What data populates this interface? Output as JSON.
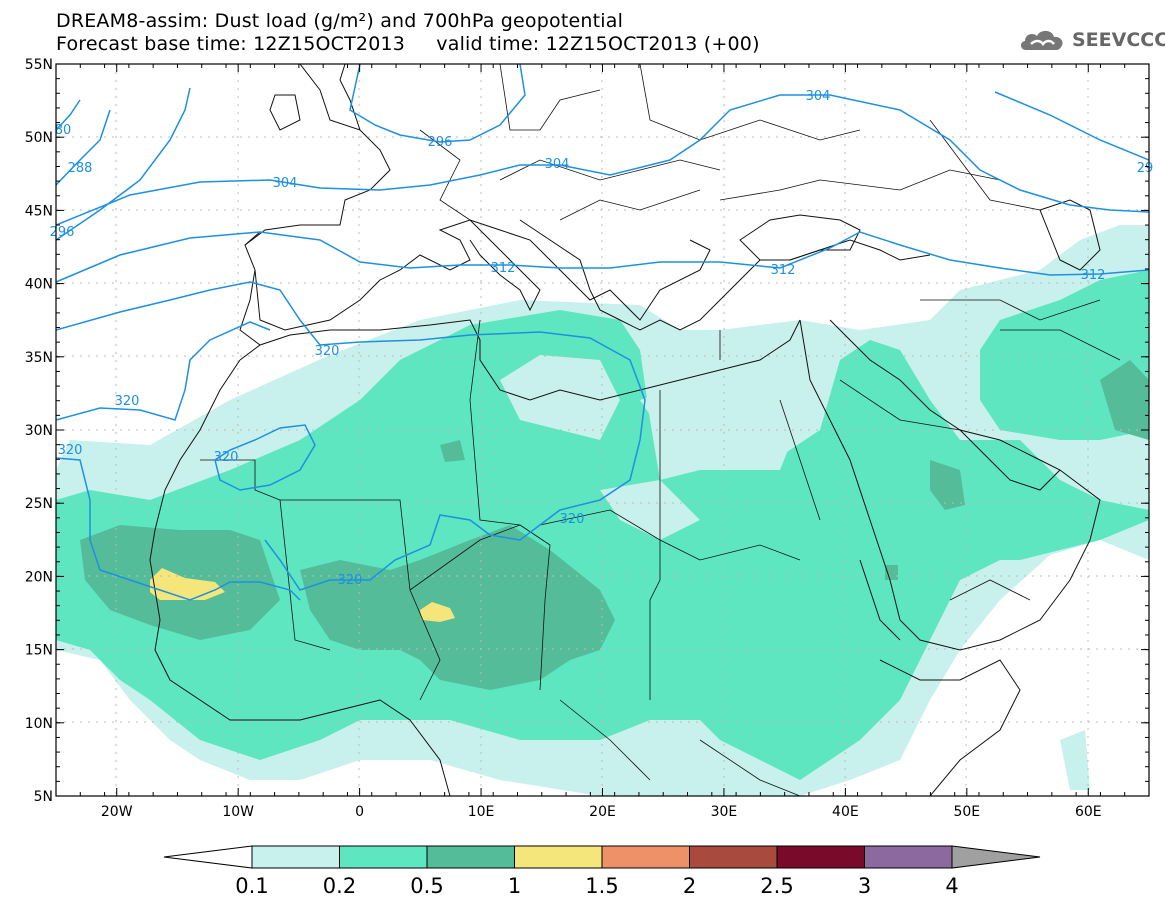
{
  "title": {
    "line1": "DREAM8-assim: Dust load (g/m²) and 700hPa geopotential",
    "line2": "Forecast base time: 12Z15OCT2013     valid time: 12Z15OCT2013 (+00)"
  },
  "logo": {
    "text": "SEEVCCC",
    "icon": "cloud-icon"
  },
  "axes": {
    "lat_labels": [
      "55N",
      "50N",
      "45N",
      "40N",
      "35N",
      "30N",
      "25N",
      "20N",
      "15N",
      "10N",
      "5N"
    ],
    "lon_labels": [
      "20W",
      "10W",
      "0",
      "10E",
      "20E",
      "30E",
      "40E",
      "50E",
      "60E"
    ],
    "lon_range": [
      -25,
      65
    ],
    "lat_range": [
      5,
      55
    ]
  },
  "contours": {
    "color": "#1e90e0",
    "labels": [
      "304",
      "304",
      "304",
      "296",
      "288",
      "296",
      "80",
      "312",
      "312",
      "312",
      "320",
      "320",
      "320",
      "320",
      "320",
      "320",
      "29"
    ]
  },
  "colorbar": {
    "ticks": [
      "0.1",
      "0.2",
      "0.5",
      "1",
      "1.5",
      "2",
      "2.5",
      "3",
      "4"
    ],
    "colors": [
      "#c8f0ec",
      "#5de6c0",
      "#55bc9a",
      "#f4e67a",
      "#ee9068",
      "#a84a3e",
      "#7a0a2a",
      "#8c6aa0"
    ],
    "under_color": "#ffffff",
    "over_color": "#a0a0a0"
  }
}
